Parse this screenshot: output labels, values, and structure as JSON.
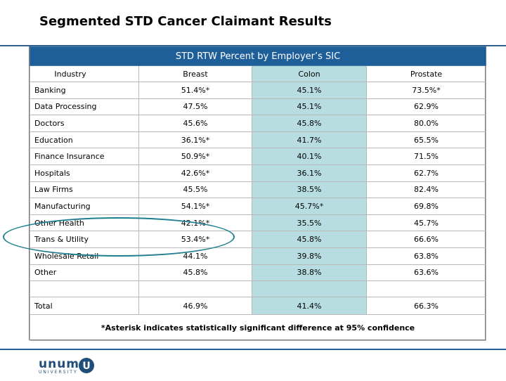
{
  "title": "Segmented STD Cancer Claimant Results",
  "table": {
    "banner": "STD RTW Percent by Employer’s SIC",
    "headers": [
      "Industry",
      "Breast",
      "Colon",
      "Prostate"
    ],
    "rows": [
      [
        "Banking",
        "51.4%*",
        "45.1%",
        "73.5%*"
      ],
      [
        "Data Processing",
        "47.5%",
        "45.1%",
        "62.9%"
      ],
      [
        "Doctors",
        "45.6%",
        "45.8%",
        "80.0%"
      ],
      [
        "Education",
        "36.1%*",
        "41.7%",
        "65.5%"
      ],
      [
        "Finance Insurance",
        "50.9%*",
        "40.1%",
        "71.5%"
      ],
      [
        "Hospitals",
        "42.6%*",
        "36.1%",
        "62.7%"
      ],
      [
        "Law Firms",
        "45.5%",
        "38.5%",
        "82.4%"
      ],
      [
        "Manufacturing",
        "54.1%*",
        "45.7%*",
        "69.8%"
      ],
      [
        "Other Health",
        "42.1%*",
        "35.5%",
        "45.7%"
      ],
      [
        "Trans & Utility",
        "53.4%*",
        "45.8%",
        "66.6%"
      ],
      [
        "Wholesale Retail",
        "44.1%",
        "39.8%",
        "63.8%"
      ],
      [
        "Other",
        "45.8%",
        "38.8%",
        "63.6%"
      ]
    ],
    "total": [
      "Total",
      "46.9%",
      "41.4%",
      "66.3%"
    ],
    "footnote": "*Asterisk indicates statistically significant difference at 95% confidence"
  },
  "footer": {
    "logo_text": "unum",
    "logo_sub": "UNIVERSITY",
    "logo_mark": "U"
  },
  "colors": {
    "banner": "#1f5f99",
    "colon_column": "#b8dde0",
    "highlight_ellipse": "#1f7f91"
  }
}
